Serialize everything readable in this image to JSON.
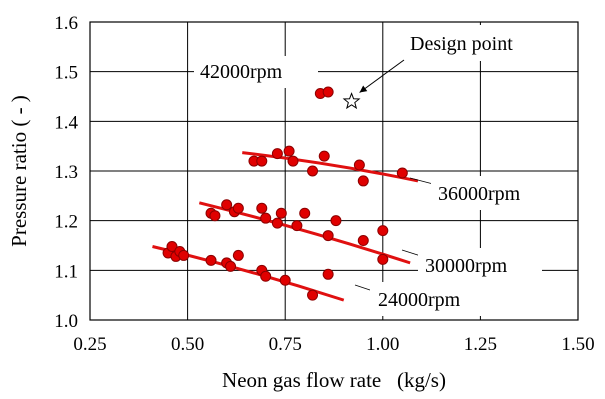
{
  "chart_data": {
    "type": "scatter",
    "xlabel": "Neon gas flow rate   (kg/s)",
    "ylabel": "Pressure ratio ( - )",
    "xlim": [
      0.25,
      1.5
    ],
    "ylim": [
      1.0,
      1.6
    ],
    "xticks": [
      "0.25",
      "0.50",
      "0.75",
      "1.00",
      "1.25",
      "1.50"
    ],
    "yticks": [
      "1.0",
      "1.1",
      "1.2",
      "1.3",
      "1.4",
      "1.5",
      "1.6"
    ],
    "grid": true,
    "series": [
      {
        "name": "42000rpm",
        "points": [
          [
            0.84,
            1.456
          ],
          [
            0.86,
            1.459
          ]
        ],
        "trend": []
      },
      {
        "name": "36000rpm",
        "points": [
          [
            0.67,
            1.32
          ],
          [
            0.69,
            1.32
          ],
          [
            0.73,
            1.335
          ],
          [
            0.76,
            1.34
          ],
          [
            0.77,
            1.32
          ],
          [
            0.82,
            1.3
          ],
          [
            0.85,
            1.33
          ],
          [
            0.94,
            1.312
          ],
          [
            0.95,
            1.28
          ],
          [
            1.05,
            1.296
          ]
        ],
        "trend": [
          [
            0.64,
            1.337
          ],
          [
            1.09,
            1.28
          ]
        ]
      },
      {
        "name": "30000rpm",
        "points": [
          [
            0.56,
            1.215
          ],
          [
            0.57,
            1.21
          ],
          [
            0.6,
            1.232
          ],
          [
            0.62,
            1.218
          ],
          [
            0.63,
            1.225
          ],
          [
            0.69,
            1.225
          ],
          [
            0.7,
            1.205
          ],
          [
            0.73,
            1.195
          ],
          [
            0.74,
            1.215
          ],
          [
            0.78,
            1.19
          ],
          [
            0.8,
            1.215
          ],
          [
            0.86,
            1.17
          ],
          [
            0.88,
            1.2
          ],
          [
            0.95,
            1.16
          ],
          [
            1.0,
            1.18
          ],
          [
            1.0,
            1.122
          ]
        ],
        "trend": [
          [
            0.53,
            1.236
          ],
          [
            1.07,
            1.115
          ]
        ]
      },
      {
        "name": "24000rpm",
        "points": [
          [
            0.45,
            1.135
          ],
          [
            0.46,
            1.148
          ],
          [
            0.47,
            1.128
          ],
          [
            0.48,
            1.138
          ],
          [
            0.49,
            1.13
          ],
          [
            0.56,
            1.12
          ],
          [
            0.6,
            1.115
          ],
          [
            0.61,
            1.108
          ],
          [
            0.63,
            1.13
          ],
          [
            0.69,
            1.1
          ],
          [
            0.7,
            1.088
          ],
          [
            0.75,
            1.08
          ],
          [
            0.82,
            1.05
          ],
          [
            0.86,
            1.092
          ]
        ],
        "trend": [
          [
            0.41,
            1.148
          ],
          [
            0.9,
            1.04
          ]
        ]
      }
    ],
    "design_point": {
      "label": "Design point",
      "x": 0.92,
      "y": 1.44
    },
    "marker_color": "#e00000",
    "marker_edge": "#8b0000",
    "trend_color": "#e01010"
  }
}
